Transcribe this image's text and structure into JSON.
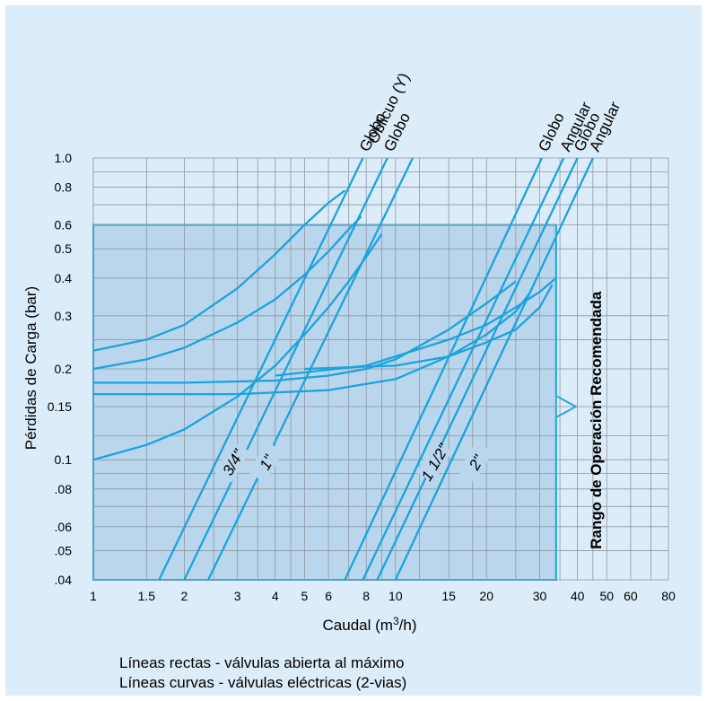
{
  "chart_data": {
    "type": "line",
    "title": "",
    "xlabel": "Caudal",
    "xlabel_unit_base": "(m",
    "xlabel_unit_sup": "3",
    "xlabel_unit_end": "/h)",
    "ylabel": "Pérdidas de Carga (bar)",
    "x_scale": "log",
    "y_scale": "log",
    "xlim": [
      1,
      80
    ],
    "ylim": [
      0.04,
      1.0
    ],
    "grid": true,
    "x_ticks": [
      {
        "v": 1,
        "label": "1"
      },
      {
        "v": 1.5,
        "label": "1.5"
      },
      {
        "v": 2,
        "label": "2"
      },
      {
        "v": 3,
        "label": "3"
      },
      {
        "v": 4,
        "label": "4"
      },
      {
        "v": 5,
        "label": "5"
      },
      {
        "v": 6,
        "label": "6"
      },
      {
        "v": 8,
        "label": "8"
      },
      {
        "v": 10,
        "label": "10"
      },
      {
        "v": 15,
        "label": "15"
      },
      {
        "v": 20,
        "label": "20"
      },
      {
        "v": 30,
        "label": "30"
      },
      {
        "v": 40,
        "label": "40"
      },
      {
        "v": 50,
        "label": "50"
      },
      {
        "v": 60,
        "label": "60"
      },
      {
        "v": 80,
        "label": "80"
      }
    ],
    "x_gridlines": [
      1,
      1.5,
      2,
      2.5,
      3,
      3.5,
      4,
      4.5,
      5,
      6,
      7,
      8,
      9,
      10,
      12,
      15,
      18,
      20,
      25,
      30,
      35,
      40,
      45,
      50,
      60,
      70,
      80
    ],
    "y_ticks": [
      {
        "v": 0.04,
        "label": ".04"
      },
      {
        "v": 0.05,
        "label": ".05"
      },
      {
        "v": 0.06,
        "label": ".06"
      },
      {
        "v": 0.08,
        "label": ".08"
      },
      {
        "v": 0.1,
        "label": "0.1"
      },
      {
        "v": 0.15,
        "label": "0.15"
      },
      {
        "v": 0.2,
        "label": "0.2"
      },
      {
        "v": 0.3,
        "label": "0.3"
      },
      {
        "v": 0.4,
        "label": "0.4"
      },
      {
        "v": 0.5,
        "label": "0.5"
      },
      {
        "v": 0.6,
        "label": "0.6"
      },
      {
        "v": 0.8,
        "label": "0.8"
      },
      {
        "v": 1.0,
        "label": "1.0"
      }
    ],
    "y_gridlines": [
      0.04,
      0.05,
      0.06,
      0.07,
      0.08,
      0.09,
      0.1,
      0.12,
      0.15,
      0.2,
      0.25,
      0.3,
      0.4,
      0.5,
      0.6,
      0.7,
      0.8,
      0.9,
      1.0
    ],
    "recommended_range": {
      "x": [
        1,
        34
      ],
      "y": [
        0.04,
        0.6
      ],
      "label": "Rango de Operación Recomendada"
    },
    "straight_lines": [
      {
        "name": "Globo",
        "size": "3/4\"",
        "points": [
          [
            1.65,
            0.04
          ],
          [
            7.8,
            1.0
          ]
        ],
        "label_lines": [
          "Globo"
        ]
      },
      {
        "name": "Globo Oblicuo (Y)",
        "size": "3/4\"",
        "points": [
          [
            2.0,
            0.04
          ],
          [
            9.4,
            1.0
          ]
        ],
        "label_lines": [
          "Globo",
          "Oblicuo (Y)"
        ]
      },
      {
        "name": "Globo",
        "size": "1\"",
        "points": [
          [
            2.4,
            0.04
          ],
          [
            11.4,
            1.0
          ]
        ],
        "label_lines": []
      },
      {
        "name": "Globo",
        "size": "1 1/2\"",
        "points": [
          [
            6.8,
            0.04
          ],
          [
            30.5,
            1.0
          ]
        ],
        "label_lines": [
          "Globo"
        ]
      },
      {
        "name": "Angular",
        "size": "1 1/2\"",
        "points": [
          [
            7.8,
            0.04
          ],
          [
            36,
            1.0
          ]
        ],
        "label_lines": [
          "Angular"
        ]
      },
      {
        "name": "Globo",
        "size": "2\"",
        "points": [
          [
            8.7,
            0.04
          ],
          [
            40,
            1.0
          ]
        ],
        "label_lines": [
          "Globo"
        ]
      },
      {
        "name": "Angular",
        "size": "2\"",
        "points": [
          [
            10,
            0.04
          ],
          [
            45,
            1.0
          ]
        ],
        "label_lines": [
          "Angular"
        ]
      }
    ],
    "curves": [
      {
        "size": "3/4\"",
        "points": [
          [
            1,
            0.23
          ],
          [
            1.5,
            0.25
          ],
          [
            2,
            0.28
          ],
          [
            3,
            0.37
          ],
          [
            4,
            0.48
          ],
          [
            5,
            0.6
          ],
          [
            6,
            0.71
          ],
          [
            6.8,
            0.78
          ]
        ]
      },
      {
        "size": "3/4\"",
        "points": [
          [
            1,
            0.2
          ],
          [
            1.5,
            0.215
          ],
          [
            2,
            0.235
          ],
          [
            3,
            0.285
          ],
          [
            4,
            0.34
          ],
          [
            5,
            0.41
          ],
          [
            6,
            0.49
          ],
          [
            7,
            0.58
          ],
          [
            7.7,
            0.64
          ]
        ]
      },
      {
        "size": "1\"",
        "points": [
          [
            1,
            0.1
          ],
          [
            1.5,
            0.112
          ],
          [
            2,
            0.126
          ],
          [
            3,
            0.162
          ],
          [
            4,
            0.205
          ],
          [
            5,
            0.26
          ],
          [
            6,
            0.32
          ],
          [
            7,
            0.39
          ],
          [
            8,
            0.47
          ],
          [
            9,
            0.56
          ]
        ]
      },
      {
        "size": "1 1/2\"",
        "points": [
          [
            1,
            0.18
          ],
          [
            2,
            0.18
          ],
          [
            4,
            0.183
          ],
          [
            6,
            0.19
          ],
          [
            8,
            0.2
          ],
          [
            10,
            0.215
          ],
          [
            15,
            0.27
          ],
          [
            20,
            0.33
          ],
          [
            25,
            0.39
          ]
        ]
      },
      {
        "size": "1 1/2\"",
        "points": [
          [
            1,
            0.165
          ],
          [
            3,
            0.165
          ],
          [
            6,
            0.17
          ],
          [
            10,
            0.185
          ],
          [
            15,
            0.22
          ],
          [
            20,
            0.26
          ],
          [
            25,
            0.31
          ],
          [
            28,
            0.36
          ]
        ]
      },
      {
        "size": "2\"",
        "points": [
          [
            4,
            0.19
          ],
          [
            8,
            0.205
          ],
          [
            10,
            0.22
          ],
          [
            15,
            0.25
          ],
          [
            20,
            0.28
          ],
          [
            25,
            0.32
          ],
          [
            30,
            0.36
          ],
          [
            34,
            0.4
          ]
        ]
      },
      {
        "size": "2\"",
        "points": [
          [
            5,
            0.2
          ],
          [
            10,
            0.205
          ],
          [
            15,
            0.22
          ],
          [
            20,
            0.245
          ],
          [
            25,
            0.27
          ],
          [
            30,
            0.32
          ],
          [
            33,
            0.38
          ]
        ]
      }
    ],
    "size_labels": [
      {
        "x": 2.9,
        "y": 0.098,
        "text": "3/4\""
      },
      {
        "x": 3.75,
        "y": 0.098,
        "text": "1\""
      },
      {
        "x": 13.5,
        "y": 0.098,
        "text": "1 1/2\""
      },
      {
        "x": 18.5,
        "y": 0.098,
        "text": "2\""
      }
    ]
  },
  "notes": [
    "Líneas rectas - válvulas abierta al máximo",
    "Líneas curvas - válvulas eléctricas (2-vias)"
  ],
  "colors": {
    "background": "#dcecf8",
    "grid": "#8f97a2",
    "range_fill": "#b9d6ed",
    "range_border": "#2da8dc",
    "lines": "#1ba3de"
  }
}
